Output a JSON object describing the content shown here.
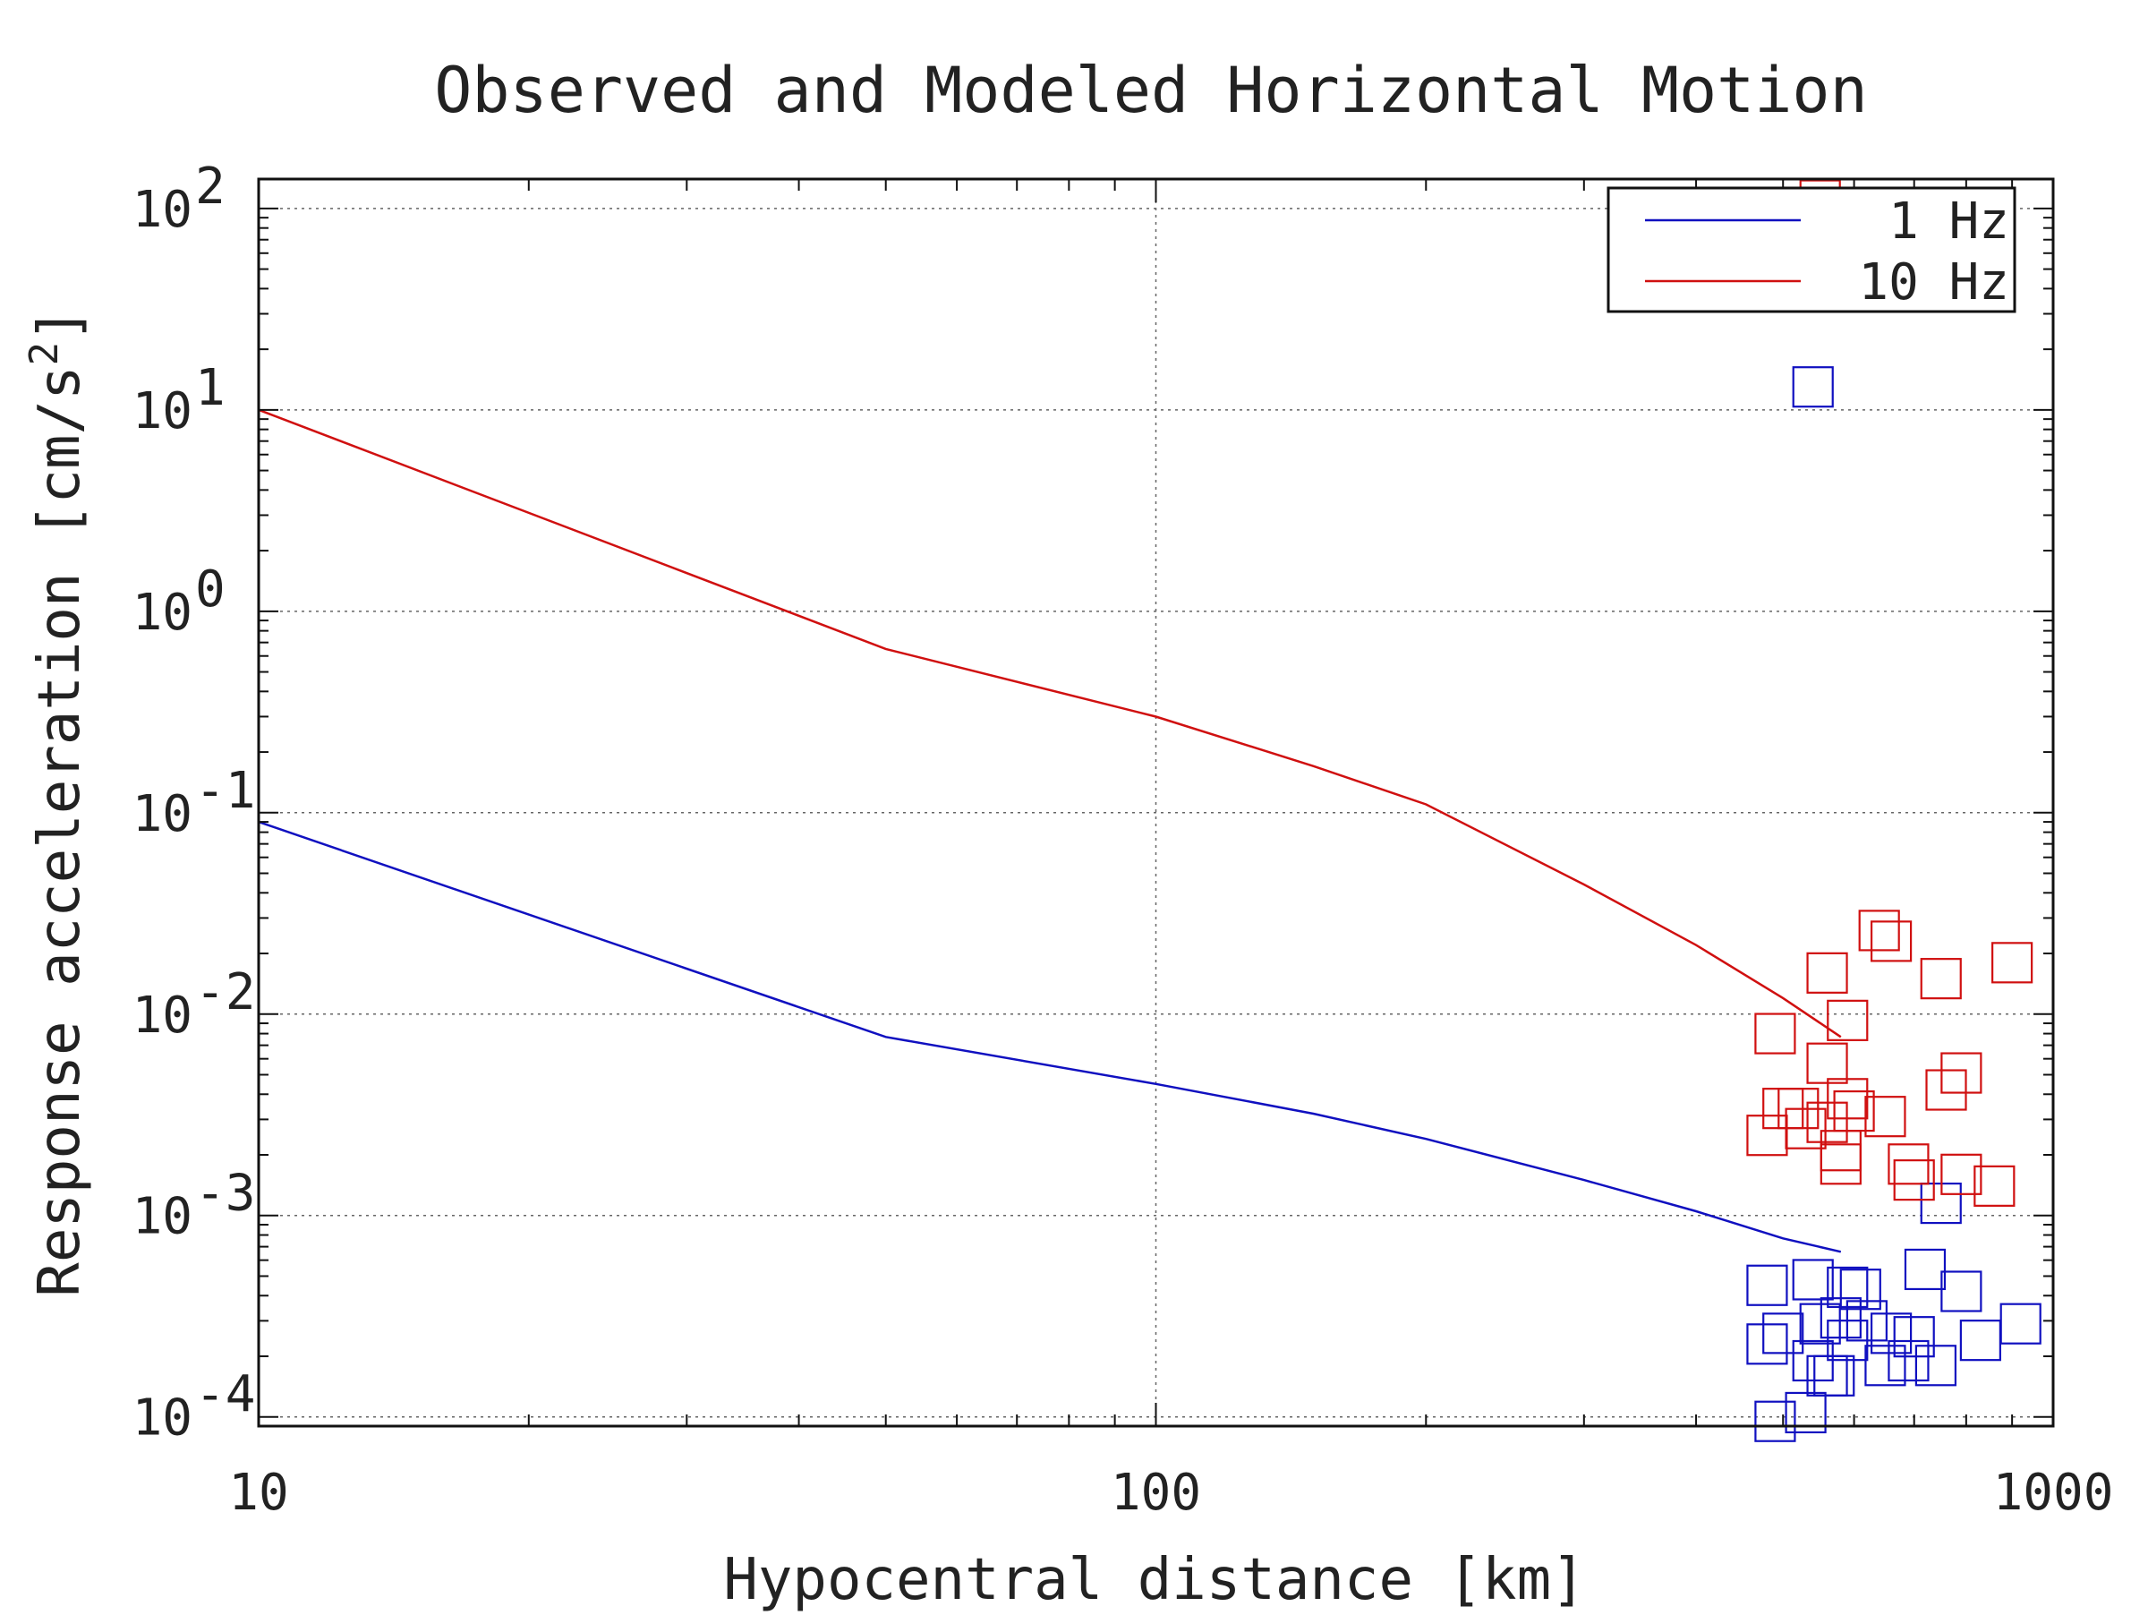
{
  "chart_data": {
    "type": "line",
    "title": "Observed and Modeled Horizontal Motion",
    "xlabel": "Hypocentral distance [km]",
    "ylabel": "Response acceleration [cm/s2]",
    "ylabel_main": "Response acceleration [cm/s",
    "ylabel_sup": "2",
    "ylabel_end": "]",
    "x_scale": "log",
    "y_scale": "log",
    "xlim": [
      10,
      1000
    ],
    "ylim": [
      9e-05,
      140
    ],
    "grid": true,
    "legend_placement": "top-right",
    "x_ticks": [
      {
        "value": 10,
        "label": "10"
      },
      {
        "value": 100,
        "label": "100"
      },
      {
        "value": 1000,
        "label": "1000"
      }
    ],
    "y_ticks": [
      {
        "value": 0.0001,
        "base": "10",
        "exp": "-4"
      },
      {
        "value": 0.001,
        "base": "10",
        "exp": "-3"
      },
      {
        "value": 0.01,
        "base": "10",
        "exp": "-2"
      },
      {
        "value": 0.1,
        "base": "10",
        "exp": "-1"
      },
      {
        "value": 1,
        "base": "10",
        "exp": "0"
      },
      {
        "value": 10,
        "base": "10",
        "exp": "1"
      },
      {
        "value": 100,
        "base": "10",
        "exp": "2"
      }
    ],
    "series": [
      {
        "name": "1 Hz",
        "color": "#1010c0",
        "line": {
          "x": [
            10,
            50,
            100,
            150,
            200,
            300,
            400,
            500,
            580
          ],
          "y": [
            0.09,
            0.0077,
            0.0045,
            0.0032,
            0.0024,
            0.0015,
            0.00105,
            0.00077,
            0.00066
          ]
        },
        "observed": {
          "x": [
            540,
            750,
            480,
            620,
            500,
            550,
            590,
            610,
            720,
            790,
            660,
            700,
            920,
            580,
            830,
            650,
            740,
            690,
            570,
            560,
            480,
            540,
            590,
            530,
            490,
            540
          ],
          "y": [
            13,
            0.00115,
            0.00045,
            0.0003,
            0.00026,
            0.00029,
            0.00024,
            0.00043,
            0.00054,
            0.00042,
            0.00026,
            0.00025,
            0.00029,
            0.00031,
            0.00024,
            0.00018,
            0.00018,
            0.00019,
            0.00016,
            0.00016,
            0.00023,
            0.00048,
            0.00044,
            0.000105,
            9.5e-05,
            0.00019
          ]
        }
      },
      {
        "name": "10 Hz",
        "color": "#d01010",
        "line": {
          "x": [
            10,
            50,
            100,
            150,
            200,
            300,
            400,
            500,
            580
          ],
          "y": [
            10,
            0.65,
            0.3,
            0.17,
            0.11,
            0.044,
            0.022,
            0.012,
            0.0077
          ]
        },
        "observed": {
          "x": [
            550,
            640,
            660,
            560,
            750,
            900,
            590,
            490,
            560,
            520,
            590,
            500,
            600,
            790,
            760,
            650,
            560,
            690,
            700,
            790,
            860,
            580,
            580,
            480,
            530
          ],
          "y": [
            110,
            0.026,
            0.023,
            0.016,
            0.015,
            0.018,
            0.0093,
            0.008,
            0.0057,
            0.0034,
            0.0038,
            0.0034,
            0.0033,
            0.0051,
            0.0042,
            0.0031,
            0.0029,
            0.0018,
            0.0015,
            0.0016,
            0.0014,
            0.0021,
            0.0018,
            0.0025,
            0.0027
          ]
        }
      }
    ]
  }
}
